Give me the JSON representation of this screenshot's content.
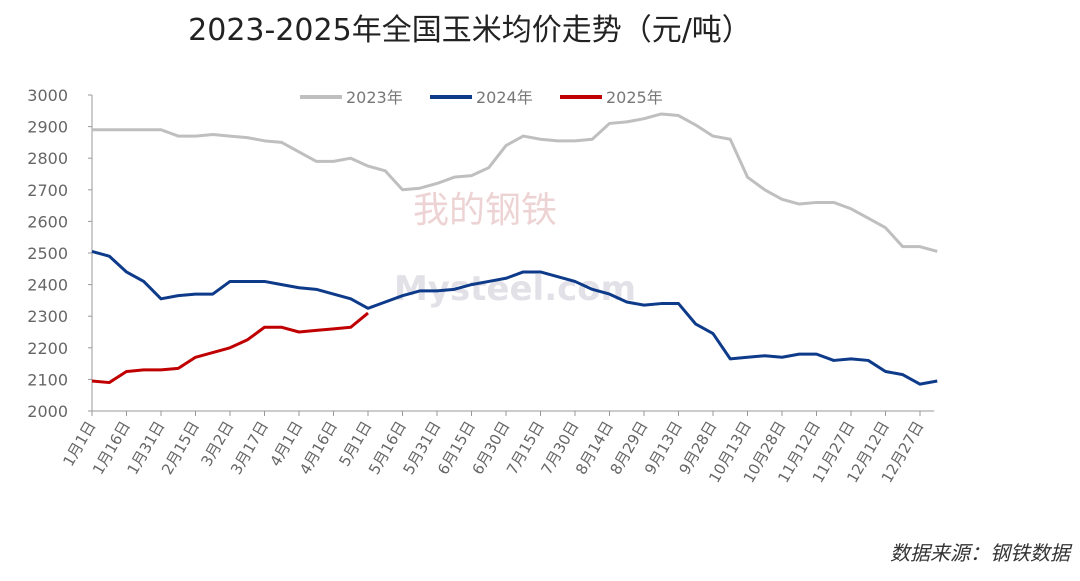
{
  "chart_data": {
    "type": "line",
    "title": "2023-2025年全国玉米均价走势（元/吨）",
    "categories": [
      "1月1日",
      null,
      "1月16日",
      null,
      "1月31日",
      null,
      "2月15日",
      null,
      "3月2日",
      null,
      "3月17日",
      null,
      "4月1日",
      null,
      "4月16日",
      null,
      "5月1日",
      null,
      "5月16日",
      null,
      "5月31日",
      null,
      "6月15日",
      null,
      "6月30日",
      null,
      "7月15日",
      null,
      "7月30日",
      null,
      "8月14日",
      null,
      "8月29日",
      null,
      "9月13日",
      null,
      "9月28日",
      null,
      "10月13日",
      null,
      "10月28日",
      null,
      "11月12日",
      null,
      "11月27日",
      null,
      "12月12日",
      null,
      "12月27日",
      null
    ],
    "series": [
      {
        "name": "2023年",
        "color": "#bfbfbf",
        "values": [
          2890,
          2890,
          2890,
          2890,
          2890,
          2870,
          2870,
          2875,
          2870,
          2865,
          2855,
          2850,
          2820,
          2790,
          2790,
          2800,
          2775,
          2760,
          2700,
          2705,
          2720,
          2740,
          2745,
          2770,
          2840,
          2870,
          2860,
          2855,
          2855,
          2860,
          2910,
          2915,
          2925,
          2940,
          2935,
          2905,
          2870,
          2860,
          2740,
          2700,
          2670,
          2655,
          2660,
          2660,
          2640,
          2610,
          2580,
          2520,
          2520,
          2505
        ]
      },
      {
        "name": "2024年",
        "color": "#0e3a8a",
        "values": [
          2505,
          2490,
          2440,
          2410,
          2355,
          2365,
          2370,
          2370,
          2410,
          2410,
          2410,
          2400,
          2390,
          2385,
          2370,
          2355,
          2325,
          2345,
          2365,
          2380,
          2380,
          2385,
          2400,
          2410,
          2420,
          2440,
          2440,
          2425,
          2410,
          2385,
          2370,
          2345,
          2335,
          2340,
          2340,
          2275,
          2245,
          2165,
          2170,
          2175,
          2170,
          2180,
          2180,
          2160,
          2165,
          2160,
          2125,
          2115,
          2085,
          2095
        ]
      },
      {
        "name": "2025年",
        "color": "#c00000",
        "values": [
          2095,
          2090,
          2125,
          2130,
          2130,
          2135,
          2170,
          2185,
          2200,
          2225,
          2265,
          2265,
          2250,
          2255,
          2260,
          2265,
          2310,
          null,
          null,
          null,
          null,
          null,
          null,
          null,
          null,
          null,
          null,
          null,
          null,
          null,
          null,
          null,
          null,
          null,
          null,
          null,
          null,
          null,
          null,
          null,
          null,
          null,
          null,
          null,
          null,
          null,
          null,
          null,
          null,
          null
        ]
      }
    ],
    "ylim": [
      2000,
      3000
    ],
    "yticks": [
      2000,
      2100,
      2200,
      2300,
      2400,
      2500,
      2600,
      2700,
      2800,
      2900,
      3000
    ],
    "legend": "top",
    "source": "数据来源：钢铁数据",
    "watermark": [
      "我的钢铁",
      "Mysteel.com"
    ]
  }
}
